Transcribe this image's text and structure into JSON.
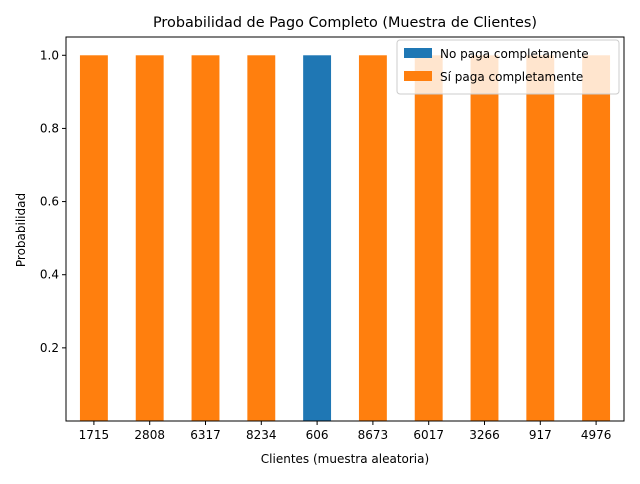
{
  "chart_data": {
    "type": "bar",
    "stacked": true,
    "title": "Probabilidad de Pago Completo (Muestra de Clientes)",
    "xlabel": "Clientes (muestra aleatoria)",
    "ylabel": "Probabilidad",
    "categories": [
      "1715",
      "2808",
      "6317",
      "8234",
      "606",
      "8673",
      "6017",
      "3266",
      "917",
      "4976"
    ],
    "series": [
      {
        "name": "No paga completamente",
        "color": "#1f77b4",
        "values": [
          0,
          0,
          0,
          0,
          1.0,
          0,
          0,
          0,
          0,
          0
        ]
      },
      {
        "name": "Sí paga completamente",
        "color": "#ff7f0e",
        "values": [
          1.0,
          1.0,
          1.0,
          1.0,
          0,
          1.0,
          1.0,
          1.0,
          1.0,
          1.0
        ]
      }
    ],
    "ylim": [
      0,
      1.05
    ],
    "yticks": [
      "0.2",
      "0.4",
      "0.6",
      "0.8",
      "1.0"
    ],
    "grid": false,
    "legend_position": "top-right"
  }
}
